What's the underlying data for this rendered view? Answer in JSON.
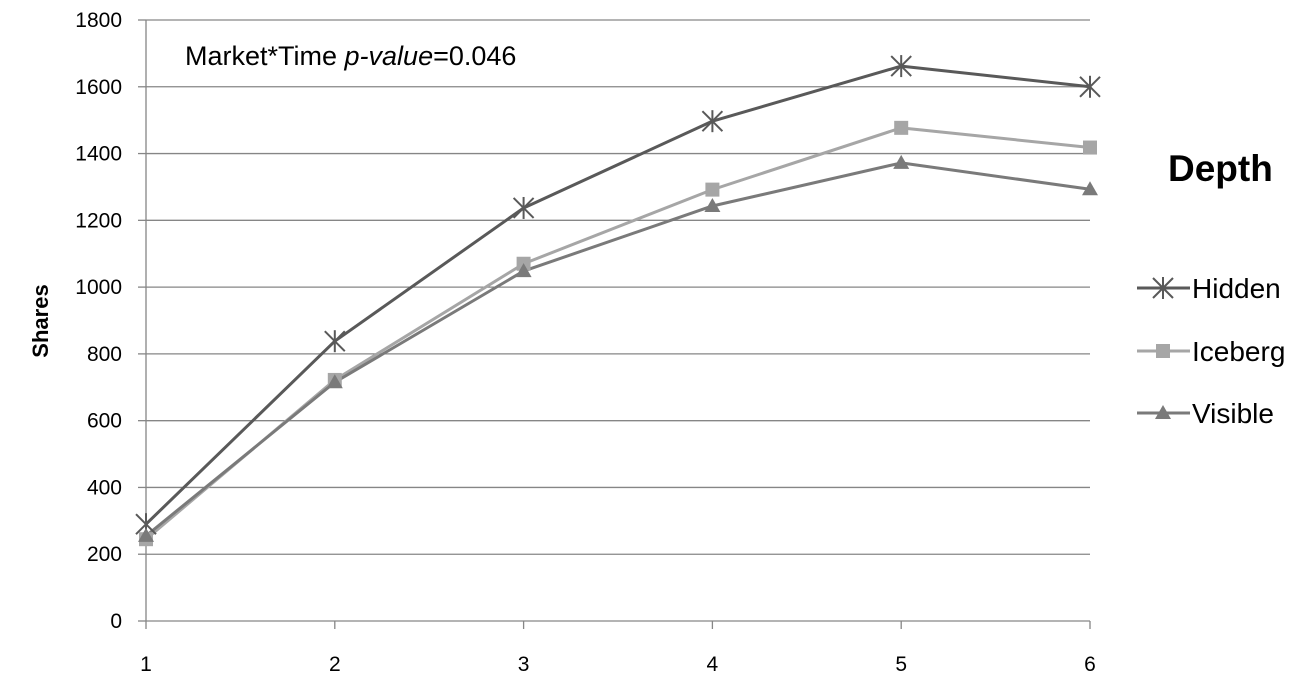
{
  "chart_data": {
    "type": "line",
    "title": "",
    "xlabel": "",
    "ylabel": "Shares",
    "x": [
      1,
      2,
      3,
      4,
      5,
      6
    ],
    "ylim": [
      0,
      1800
    ],
    "yticks": [
      0,
      200,
      400,
      600,
      800,
      1000,
      1200,
      1400,
      1600,
      1800
    ],
    "grid": true,
    "annotation": {
      "prefix": "Market*Time ",
      "italic": "p-value",
      "suffix": "=0.046"
    },
    "legend": {
      "title": "Depth",
      "placement": "right"
    },
    "series": [
      {
        "name": "Hidden",
        "values": [
          290,
          838,
          1237,
          1497,
          1662,
          1600
        ],
        "color": "#595959",
        "marker": "asterisk"
      },
      {
        "name": "Iceberg",
        "values": [
          245,
          722,
          1070,
          1292,
          1477,
          1418
        ],
        "color": "#a6a6a6",
        "marker": "square"
      },
      {
        "name": "Visible",
        "values": [
          255,
          715,
          1048,
          1243,
          1372,
          1293
        ],
        "color": "#7a7a7a",
        "marker": "triangle"
      }
    ]
  }
}
